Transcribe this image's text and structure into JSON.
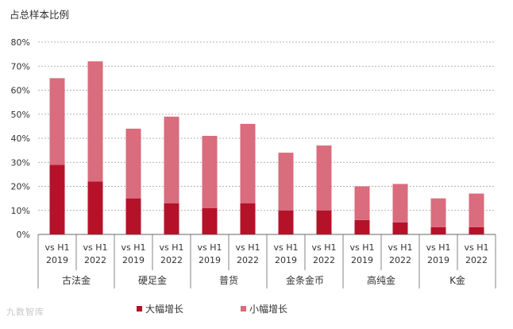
{
  "chart_data": {
    "type": "bar",
    "stacked": true,
    "title": "占总样本比例",
    "ylim": [
      0,
      80
    ],
    "yticks": [
      "0%",
      "10%",
      "20%",
      "30%",
      "40%",
      "50%",
      "60%",
      "70%",
      "80%"
    ],
    "grid": "dashed horizontal",
    "groups": [
      "古法金",
      "硬足金",
      "普货",
      "金条金币",
      "高纯金",
      "K金"
    ],
    "sub_labels": [
      [
        "vs H1",
        "2019"
      ],
      [
        "vs H1",
        "2022"
      ]
    ],
    "series": [
      {
        "name": "大幅增长",
        "color": "#b5122a",
        "values": [
          29,
          22,
          15,
          13,
          11,
          13,
          10,
          10,
          6,
          5,
          3,
          3
        ]
      },
      {
        "name": "小幅增长",
        "color": "#d96c7d",
        "values": [
          36,
          50,
          29,
          36,
          30,
          33,
          24,
          27,
          14,
          16,
          12,
          14
        ]
      }
    ],
    "legend_position": "bottom"
  },
  "watermark": "九数智库"
}
